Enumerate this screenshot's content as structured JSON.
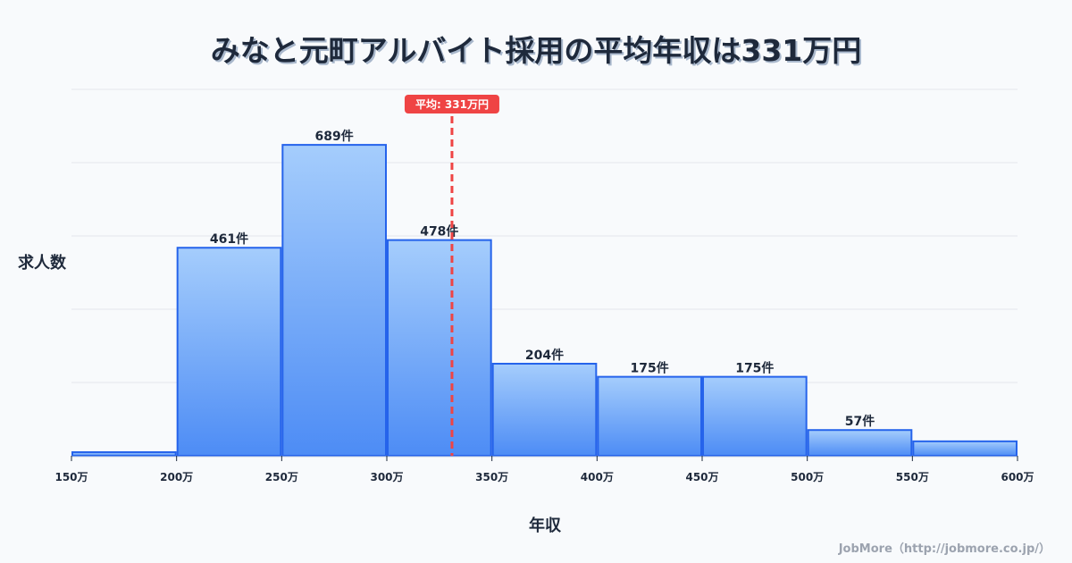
{
  "chart_data": {
    "type": "bar",
    "title": "みなと元町アルバイト採用の平均年収は331万円",
    "xlabel": "年収",
    "ylabel": "求人数",
    "bin_edges": [
      150,
      200,
      250,
      300,
      350,
      400,
      450,
      500,
      550,
      600
    ],
    "tick_labels": [
      "150万",
      "200万",
      "250万",
      "300万",
      "350万",
      "400万",
      "450万",
      "500万",
      "550万",
      "600万"
    ],
    "values": [
      8,
      461,
      689,
      478,
      204,
      175,
      175,
      57,
      32
    ],
    "data_labels": [
      "",
      "461件",
      "689件",
      "478件",
      "204件",
      "175件",
      "175件",
      "57件",
      ""
    ],
    "xlim": [
      150,
      600
    ],
    "ylim": [
      0,
      812
    ],
    "grid": true,
    "mean": {
      "value": 331,
      "label": "平均: 331万円",
      "color": "#ef4444"
    },
    "colors": {
      "bar_top": "#a5cdfc",
      "bar_bottom": "#4d8cf5",
      "bar_border": "#2563eb"
    }
  },
  "credit": "JobMore（http://jobmore.co.jp/）"
}
